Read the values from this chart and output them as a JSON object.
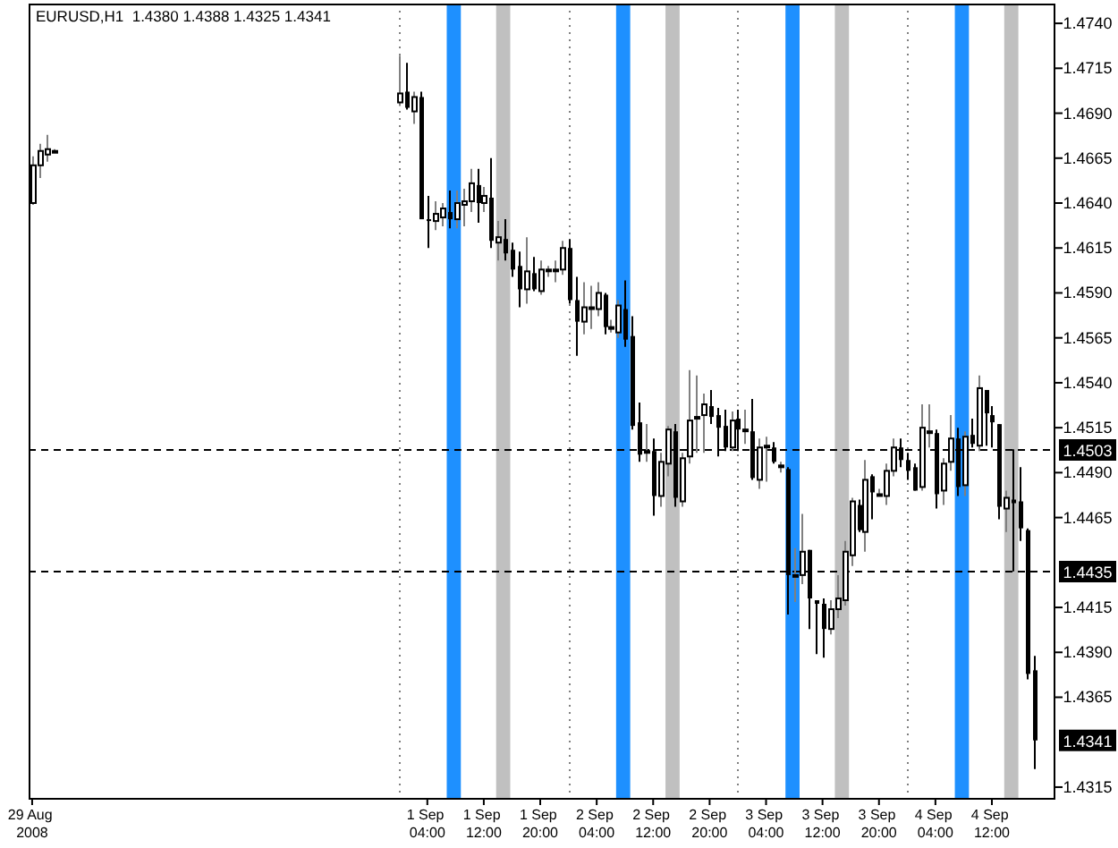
{
  "chart_data": {
    "type": "candlestick",
    "title": "EURUSD,H1  1.4380 1.4388 1.4325 1.4341",
    "color": "#000000",
    "x": [
      "2008-08-29T20:00",
      "2008-08-29T21:00",
      "2008-08-29T22:00",
      "2008-08-29T23:00",
      "2008-09-01T00:00",
      "2008-09-01T01:00",
      "2008-09-01T02:00",
      "2008-09-01T03:00",
      "2008-09-01T04:00",
      "2008-09-01T05:00",
      "2008-09-01T06:00",
      "2008-09-01T07:00",
      "2008-09-01T08:00",
      "2008-09-01T09:00",
      "2008-09-01T10:00",
      "2008-09-01T11:00",
      "2008-09-01T12:00",
      "2008-09-01T13:00",
      "2008-09-01T14:00",
      "2008-09-01T15:00",
      "2008-09-01T16:00",
      "2008-09-01T17:00",
      "2008-09-01T18:00",
      "2008-09-01T19:00",
      "2008-09-01T20:00",
      "2008-09-01T21:00",
      "2008-09-01T22:00",
      "2008-09-01T23:00",
      "2008-09-02T00:00",
      "2008-09-02T01:00",
      "2008-09-02T02:00",
      "2008-09-02T03:00",
      "2008-09-02T04:00",
      "2008-09-02T05:00",
      "2008-09-02T06:00",
      "2008-09-02T07:00",
      "2008-09-02T08:00",
      "2008-09-02T09:00",
      "2008-09-02T10:00",
      "2008-09-02T11:00",
      "2008-09-02T12:00",
      "2008-09-02T13:00",
      "2008-09-02T14:00",
      "2008-09-02T15:00",
      "2008-09-02T16:00",
      "2008-09-02T17:00",
      "2008-09-02T18:00",
      "2008-09-02T19:00",
      "2008-09-02T20:00",
      "2008-09-02T21:00",
      "2008-09-02T22:00",
      "2008-09-02T23:00",
      "2008-09-03T00:00",
      "2008-09-03T01:00",
      "2008-09-03T02:00",
      "2008-09-03T03:00",
      "2008-09-03T04:00",
      "2008-09-03T05:00",
      "2008-09-03T06:00",
      "2008-09-03T07:00",
      "2008-09-03T08:00",
      "2008-09-03T09:00",
      "2008-09-03T10:00",
      "2008-09-03T11:00",
      "2008-09-03T12:00",
      "2008-09-03T13:00",
      "2008-09-03T14:00",
      "2008-09-03T15:00",
      "2008-09-03T16:00",
      "2008-09-03T17:00",
      "2008-09-03T18:00",
      "2008-09-03T19:00",
      "2008-09-03T20:00",
      "2008-09-03T21:00",
      "2008-09-03T22:00",
      "2008-09-03T23:00",
      "2008-09-04T00:00",
      "2008-09-04T01:00",
      "2008-09-04T02:00",
      "2008-09-04T03:00",
      "2008-09-04T04:00",
      "2008-09-04T05:00",
      "2008-09-04T06:00",
      "2008-09-04T07:00",
      "2008-09-04T08:00",
      "2008-09-04T09:00",
      "2008-09-04T10:00",
      "2008-09-04T11:00",
      "2008-09-04T12:00",
      "2008-09-04T13:00",
      "2008-09-04T14:00",
      "2008-09-04T15:00",
      "2008-09-04T16:00",
      "2008-09-04T17:00",
      "2008-09-04T18:00"
    ],
    "ohlc": [
      [
        1.464,
        1.4666,
        1.4639,
        1.4661
      ],
      [
        1.4661,
        1.4673,
        1.4654,
        1.4669
      ],
      [
        1.4667,
        1.4678,
        1.4663,
        1.467
      ],
      [
        1.4669,
        1.467,
        1.4668,
        1.4669
      ],
      [
        1.4696,
        1.4722,
        1.4694,
        1.4701
      ],
      [
        1.4702,
        1.4718,
        1.4692,
        1.4693
      ],
      [
        1.4691,
        1.4702,
        1.4684,
        1.4699
      ],
      [
        1.4699,
        1.4702,
        1.4631,
        1.4631
      ],
      [
        1.4631,
        1.4644,
        1.4615,
        1.463
      ],
      [
        1.463,
        1.4641,
        1.4625,
        1.4634
      ],
      [
        1.4632,
        1.464,
        1.4627,
        1.4637
      ],
      [
        1.4635,
        1.4647,
        1.4626,
        1.4631
      ],
      [
        1.4631,
        1.4647,
        1.4626,
        1.464
      ],
      [
        1.4639,
        1.4648,
        1.4627,
        1.4641
      ],
      [
        1.4641,
        1.4659,
        1.4635,
        1.4651
      ],
      [
        1.465,
        1.4659,
        1.4629,
        1.464
      ],
      [
        1.464,
        1.4649,
        1.4635,
        1.4644
      ],
      [
        1.4643,
        1.4665,
        1.4615,
        1.4619
      ],
      [
        1.4618,
        1.463,
        1.4608,
        1.4621
      ],
      [
        1.462,
        1.4631,
        1.4608,
        1.4612
      ],
      [
        1.4614,
        1.4618,
        1.4599,
        1.4603
      ],
      [
        1.4605,
        1.4613,
        1.4582,
        1.4592
      ],
      [
        1.4592,
        1.4621,
        1.4584,
        1.4602
      ],
      [
        1.4601,
        1.461,
        1.4591,
        1.4592
      ],
      [
        1.4591,
        1.4608,
        1.4589,
        1.4603
      ],
      [
        1.4603,
        1.4605,
        1.4599,
        1.4603
      ],
      [
        1.4603,
        1.4608,
        1.4596,
        1.4603
      ],
      [
        1.4603,
        1.4619,
        1.46,
        1.4615
      ],
      [
        1.4615,
        1.462,
        1.4584,
        1.4586
      ],
      [
        1.4586,
        1.4599,
        1.4555,
        1.4574
      ],
      [
        1.4574,
        1.4596,
        1.4567,
        1.4582
      ],
      [
        1.4582,
        1.4594,
        1.457,
        1.4582
      ],
      [
        1.4581,
        1.4596,
        1.4577,
        1.459
      ],
      [
        1.4589,
        1.459,
        1.4567,
        1.4571
      ],
      [
        1.4571,
        1.4575,
        1.4568,
        1.4571
      ],
      [
        1.4568,
        1.4586,
        1.4565,
        1.4583
      ],
      [
        1.4581,
        1.4597,
        1.456,
        1.4564
      ],
      [
        1.4566,
        1.4577,
        1.4514,
        1.4516
      ],
      [
        1.4518,
        1.4529,
        1.4496,
        1.45
      ],
      [
        1.4502,
        1.4517,
        1.4496,
        1.4502
      ],
      [
        1.4502,
        1.4509,
        1.4466,
        1.4477
      ],
      [
        1.4477,
        1.4501,
        1.4471,
        1.4496
      ],
      [
        1.4495,
        1.4516,
        1.4488,
        1.4514
      ],
      [
        1.4513,
        1.4517,
        1.4471,
        1.4476
      ],
      [
        1.4474,
        1.4501,
        1.4471,
        1.4498
      ],
      [
        1.4499,
        1.4547,
        1.4495,
        1.4519
      ],
      [
        1.4521,
        1.4544,
        1.4501,
        1.4521
      ],
      [
        1.4522,
        1.4534,
        1.4501,
        1.4528
      ],
      [
        1.4527,
        1.4536,
        1.4517,
        1.4521
      ],
      [
        1.4522,
        1.4526,
        1.4499,
        1.4515
      ],
      [
        1.4516,
        1.4525,
        1.4502,
        1.4504
      ],
      [
        1.4504,
        1.4524,
        1.4502,
        1.4519
      ],
      [
        1.452,
        1.4525,
        1.4502,
        1.4514
      ],
      [
        1.4514,
        1.4525,
        1.4506,
        1.4514
      ],
      [
        1.4513,
        1.4531,
        1.4486,
        1.4487
      ],
      [
        1.4486,
        1.4509,
        1.4481,
        1.4504
      ],
      [
        1.4505,
        1.451,
        1.4485,
        1.4505
      ],
      [
        1.4504,
        1.4507,
        1.4495,
        1.4496
      ],
      [
        1.4494,
        1.4496,
        1.449,
        1.4494
      ],
      [
        1.4492,
        1.4493,
        1.4411,
        1.4433
      ],
      [
        1.4433,
        1.4448,
        1.4418,
        1.4433
      ],
      [
        1.4433,
        1.4467,
        1.4428,
        1.4446
      ],
      [
        1.4447,
        1.4447,
        1.4403,
        1.442
      ],
      [
        1.4419,
        1.4419,
        1.4389,
        1.4417
      ],
      [
        1.4417,
        1.442,
        1.4387,
        1.4403
      ],
      [
        1.4403,
        1.4419,
        1.44,
        1.4414
      ],
      [
        1.4414,
        1.4433,
        1.4409,
        1.442
      ],
      [
        1.4419,
        1.4452,
        1.4416,
        1.4446
      ],
      [
        1.4444,
        1.4476,
        1.4438,
        1.4474
      ],
      [
        1.4472,
        1.4475,
        1.4457,
        1.4458
      ],
      [
        1.4457,
        1.4497,
        1.4446,
        1.4486
      ],
      [
        1.4488,
        1.4489,
        1.4464,
        1.4479
      ],
      [
        1.4478,
        1.4481,
        1.4477,
        1.4478
      ],
      [
        1.4477,
        1.4495,
        1.4472,
        1.4491
      ],
      [
        1.4491,
        1.4509,
        1.4488,
        1.4504
      ],
      [
        1.4504,
        1.4509,
        1.4493,
        1.4497
      ],
      [
        1.4497,
        1.4501,
        1.4486,
        1.4491
      ],
      [
        1.4493,
        1.4495,
        1.448,
        1.448
      ],
      [
        1.4482,
        1.4528,
        1.448,
        1.4515
      ],
      [
        1.4513,
        1.4528,
        1.4504,
        1.4513
      ],
      [
        1.4512,
        1.4514,
        1.447,
        1.4478
      ],
      [
        1.448,
        1.4498,
        1.4472,
        1.4495
      ],
      [
        1.4496,
        1.4522,
        1.4491,
        1.4509
      ],
      [
        1.4509,
        1.4515,
        1.4477,
        1.4482
      ],
      [
        1.4483,
        1.4513,
        1.4477,
        1.451
      ],
      [
        1.4511,
        1.452,
        1.4504,
        1.4506
      ],
      [
        1.4505,
        1.4544,
        1.4502,
        1.4537
      ],
      [
        1.4536,
        1.4536,
        1.4505,
        1.4523
      ],
      [
        1.4522,
        1.4527,
        1.4504,
        1.4518
      ],
      [
        1.4517,
        1.4517,
        1.4464,
        1.4471
      ],
      [
        1.447,
        1.448,
        1.4457,
        1.4476
      ],
      [
        1.4475,
        1.4503,
        1.4435,
        1.4473
      ],
      [
        1.4474,
        1.4493,
        1.4452,
        1.4459
      ],
      [
        1.4458,
        1.4459,
        1.4375,
        1.4378
      ],
      [
        1.438,
        1.4388,
        1.4325,
        1.4341
      ]
    ],
    "xlim": [
      "2008-08-29T19:30",
      "2008-09-04T21:00"
    ],
    "xticks": [
      {
        "value": "2008-08-29T20:00",
        "label": "29 Aug 2008"
      },
      {
        "value": "2008-09-01T04:00",
        "label": "1 Sep 04:00"
      },
      {
        "value": "2008-09-01T12:00",
        "label": "1 Sep 12:00"
      },
      {
        "value": "2008-09-01T20:00",
        "label": "1 Sep 20:00"
      },
      {
        "value": "2008-09-02T04:00",
        "label": "2 Sep 04:00"
      },
      {
        "value": "2008-09-02T12:00",
        "label": "2 Sep 12:00"
      },
      {
        "value": "2008-09-02T20:00",
        "label": "2 Sep 20:00"
      },
      {
        "value": "2008-09-03T04:00",
        "label": "3 Sep 04:00"
      },
      {
        "value": "2008-09-03T12:00",
        "label": "3 Sep 12:00"
      },
      {
        "value": "2008-09-03T20:00",
        "label": "3 Sep 20:00"
      },
      {
        "value": "2008-09-04T04:00",
        "label": "4 Sep 04:00"
      },
      {
        "value": "2008-09-04T12:00",
        "label": "4 Sep 12:00"
      }
    ],
    "ylim": [
      1.4309,
      1.4751
    ],
    "yticks": [
      {
        "value": 1.4315,
        "label": "1.4315"
      },
      {
        "value": 1.4365,
        "label": "1.4365"
      },
      {
        "value": 1.439,
        "label": "1.4390"
      },
      {
        "value": 1.4415,
        "label": "1.4415"
      },
      {
        "value": 1.4465,
        "label": "1.4465"
      },
      {
        "value": 1.449,
        "label": "1.4490"
      },
      {
        "value": 1.4515,
        "label": "1.4515"
      },
      {
        "value": 1.454,
        "label": "1.4540"
      },
      {
        "value": 1.4565,
        "label": "1.4565"
      },
      {
        "value": 1.459,
        "label": "1.4590"
      },
      {
        "value": 1.4615,
        "label": "1.4615"
      },
      {
        "value": 1.464,
        "label": "1.4640"
      },
      {
        "value": 1.4665,
        "label": "1.4665"
      },
      {
        "value": 1.469,
        "label": "1.4690"
      },
      {
        "value": 1.4715,
        "label": "1.4715"
      },
      {
        "value": 1.474,
        "label": "1.4740"
      }
    ],
    "ref_lines": [
      {
        "axis": "y",
        "value": 1.4503,
        "label": "1.4503",
        "color": "#000000",
        "line_style": "dashed"
      },
      {
        "axis": "y",
        "value": 1.4435,
        "label": "1.4435",
        "color": "#000000",
        "line_style": "dashed"
      },
      {
        "axis": "x",
        "value": "2008-09-01T00:00",
        "color": "#808080",
        "line_style": "dotted"
      },
      {
        "axis": "x",
        "value": "2008-09-02T00:00",
        "color": "#808080",
        "line_style": "dotted"
      },
      {
        "axis": "x",
        "value": "2008-09-03T00:00",
        "color": "#808080",
        "line_style": "dotted"
      },
      {
        "axis": "x",
        "value": "2008-09-04T00:00",
        "color": "#808080",
        "line_style": "dotted"
      }
    ],
    "bands": [
      {
        "axis": "x",
        "from": "2008-09-01T06:45",
        "to": "2008-09-01T08:45",
        "color": "#1e90ff"
      },
      {
        "axis": "x",
        "from": "2008-09-01T13:45",
        "to": "2008-09-01T15:45",
        "color": "#c0c0c0"
      },
      {
        "axis": "x",
        "from": "2008-09-02T06:45",
        "to": "2008-09-02T08:45",
        "color": "#1e90ff"
      },
      {
        "axis": "x",
        "from": "2008-09-02T13:45",
        "to": "2008-09-02T15:45",
        "color": "#c0c0c0"
      },
      {
        "axis": "x",
        "from": "2008-09-03T06:45",
        "to": "2008-09-03T08:45",
        "color": "#1e90ff"
      },
      {
        "axis": "x",
        "from": "2008-09-03T13:45",
        "to": "2008-09-03T15:45",
        "color": "#c0c0c0"
      },
      {
        "axis": "x",
        "from": "2008-09-04T06:45",
        "to": "2008-09-04T08:45",
        "color": "#1e90ff"
      },
      {
        "axis": "x",
        "from": "2008-09-04T13:45",
        "to": "2008-09-04T15:45",
        "color": "#c0c0c0"
      }
    ],
    "annotations": [
      {
        "text": "1.4341",
        "y": 1.4341
      }
    ]
  }
}
